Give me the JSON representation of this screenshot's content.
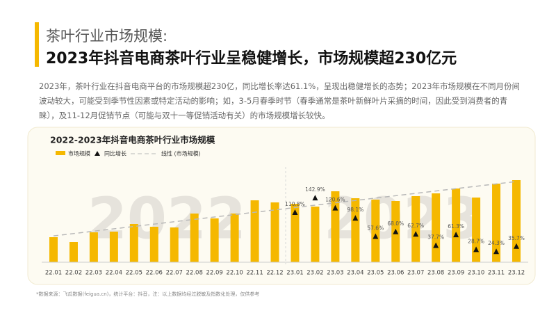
{
  "header": {
    "title": "茶叶行业市场规模:",
    "headline": "2023年抖音电商茶叶行业呈稳健增长，市场规模超230亿元",
    "paragraph": "2023年，茶叶行业在抖音电商平台的市场规模超230亿，同比增长率达61.1%，呈现出稳健增长的态势；2023年市场规模在不同月份间波动较大，可能受到季节性因素或特定活动的影响；如，3-5月春季时节（春季通常是茶叶新鲜叶片采摘的时间，因此受到消费者的青睐），及11-12月促销节点（可能与双十一等促销活动有关）的市场规模增长较快。",
    "footnote": "*数据来源：飞瓜数据(feigua.cn)，统计平台：抖音，注：以上数据均经过脱敏及指数化处理，仅供参考"
  },
  "chart_data": {
    "type": "bar",
    "title": "2022-2023年抖音电商茶叶行业市场规模",
    "watermarks": [
      "2022",
      "2023"
    ],
    "categories": [
      "22.01",
      "22.02",
      "22.03",
      "22.04",
      "22.05",
      "22.06",
      "22.07",
      "22.08",
      "22.09",
      "22.10",
      "22.11",
      "22.12",
      "23.01",
      "23.02",
      "23.03",
      "23.04",
      "23.05",
      "23.06",
      "23.07",
      "23.08",
      "23.09",
      "23.10",
      "23.11",
      "23.12"
    ],
    "ylim": [
      0,
      130
    ],
    "y2lim": [
      0,
      200
    ],
    "series": [
      {
        "name": "市场规模",
        "color": "#f5b800",
        "values": [
          36,
          29,
          43,
          44,
          55,
          51,
          50,
          70,
          63,
          70,
          89,
          86,
          84,
          80,
          102,
          92,
          90,
          88,
          95,
          99,
          106,
          93,
          113,
          118
        ]
      },
      {
        "name": "同比增长",
        "axis": "y2",
        "color": "#111111",
        "values": [
          null,
          null,
          null,
          null,
          null,
          null,
          null,
          null,
          null,
          null,
          null,
          null,
          110.8,
          142.9,
          120.6,
          98.1,
          57.6,
          68.0,
          62.7,
          37.7,
          61.3,
          28.7,
          24.3,
          35.7
        ],
        "value_labels": [
          null,
          null,
          null,
          null,
          null,
          null,
          null,
          null,
          null,
          null,
          null,
          null,
          "110.8%",
          "142.9%",
          "120.6%",
          "98.1%",
          "57.6%",
          "68.0%",
          "62.7%",
          "37.7%",
          "61.3%",
          "28.7%",
          "24.3%",
          "35.7%"
        ]
      }
    ],
    "trendline": {
      "name": "线性 (市场规模)",
      "color": "#b8b8b8"
    }
  }
}
